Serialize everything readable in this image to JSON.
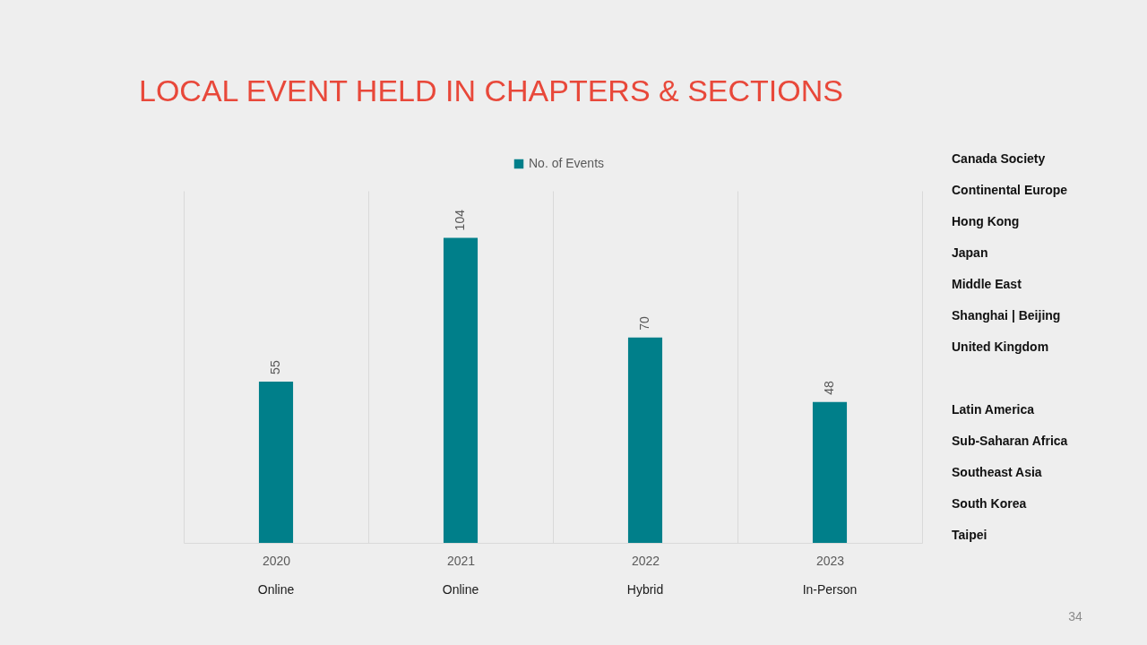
{
  "chart_data": {
    "type": "bar",
    "title": "LOCAL EVENT HELD IN CHAPTERS & SECTIONS",
    "categories": [
      "2020",
      "2021",
      "2022",
      "2023"
    ],
    "series": [
      {
        "name": "No. of Events",
        "color": "#007f8a",
        "values": [
          55,
          104,
          70,
          48
        ]
      }
    ],
    "ylim": [
      0,
      120
    ],
    "tick_labels": "x",
    "data_labels": true,
    "legend": "top",
    "grid": "x",
    "annotations": [
      "Online",
      "Online",
      "Hybrid",
      "In-Person",
      "Canada Society",
      "Continental Europe",
      "Hong Kong",
      "Japan",
      "Middle East",
      "Shanghai | Beijing",
      "United Kingdom",
      "Latin America",
      "Sub-Saharan Africa",
      "Southeast Asia",
      "South Korea",
      "Taipei",
      "34"
    ]
  }
}
